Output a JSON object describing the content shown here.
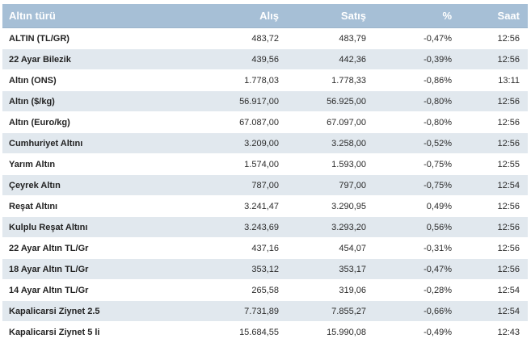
{
  "table": {
    "headers": {
      "name": "Altın türü",
      "buy": "Alış",
      "sell": "Satış",
      "pct": "%",
      "time": "Saat"
    },
    "rows": [
      {
        "name": "ALTIN (TL/GR)",
        "buy": "483,72",
        "sell": "483,79",
        "pct": "-0,47%",
        "time": "12:56"
      },
      {
        "name": "22 Ayar Bilezik",
        "buy": "439,56",
        "sell": "442,36",
        "pct": "-0,39%",
        "time": "12:56"
      },
      {
        "name": "Altın (ONS)",
        "buy": "1.778,03",
        "sell": "1.778,33",
        "pct": "-0,86%",
        "time": "13:11"
      },
      {
        "name": "Altın ($/kg)",
        "buy": "56.917,00",
        "sell": "56.925,00",
        "pct": "-0,80%",
        "time": "12:56"
      },
      {
        "name": "Altın (Euro/kg)",
        "buy": "67.087,00",
        "sell": "67.097,00",
        "pct": "-0,80%",
        "time": "12:56"
      },
      {
        "name": "Cumhuriyet Altını",
        "buy": "3.209,00",
        "sell": "3.258,00",
        "pct": "-0,52%",
        "time": "12:56"
      },
      {
        "name": "Yarım Altın",
        "buy": "1.574,00",
        "sell": "1.593,00",
        "pct": "-0,75%",
        "time": "12:55"
      },
      {
        "name": "Çeyrek Altın",
        "buy": "787,00",
        "sell": "797,00",
        "pct": "-0,75%",
        "time": "12:54"
      },
      {
        "name": "Reşat Altını",
        "buy": "3.241,47",
        "sell": "3.290,95",
        "pct": "0,49%",
        "time": "12:56"
      },
      {
        "name": "Kulplu Reşat Altını",
        "buy": "3.243,69",
        "sell": "3.293,20",
        "pct": "0,56%",
        "time": "12:56"
      },
      {
        "name": "22 Ayar Altın TL/Gr",
        "buy": "437,16",
        "sell": "454,07",
        "pct": "-0,31%",
        "time": "12:56"
      },
      {
        "name": "18 Ayar Altın TL/Gr",
        "buy": "353,12",
        "sell": "353,17",
        "pct": "-0,47%",
        "time": "12:56"
      },
      {
        "name": "14 Ayar Altın TL/Gr",
        "buy": "265,58",
        "sell": "319,06",
        "pct": "-0,28%",
        "time": "12:54"
      },
      {
        "name": "Kapalicarsi Ziynet 2.5",
        "buy": "7.731,89",
        "sell": "7.855,27",
        "pct": "-0,66%",
        "time": "12:54"
      },
      {
        "name": "Kapalicarsi Ziynet 5 li",
        "buy": "15.684,55",
        "sell": "15.990,08",
        "pct": "-0,49%",
        "time": "12:43"
      }
    ]
  },
  "colors": {
    "header_bg": "#a6bfd6",
    "row_alt_bg": "#e1e8ee",
    "row_bg": "#ffffff"
  }
}
